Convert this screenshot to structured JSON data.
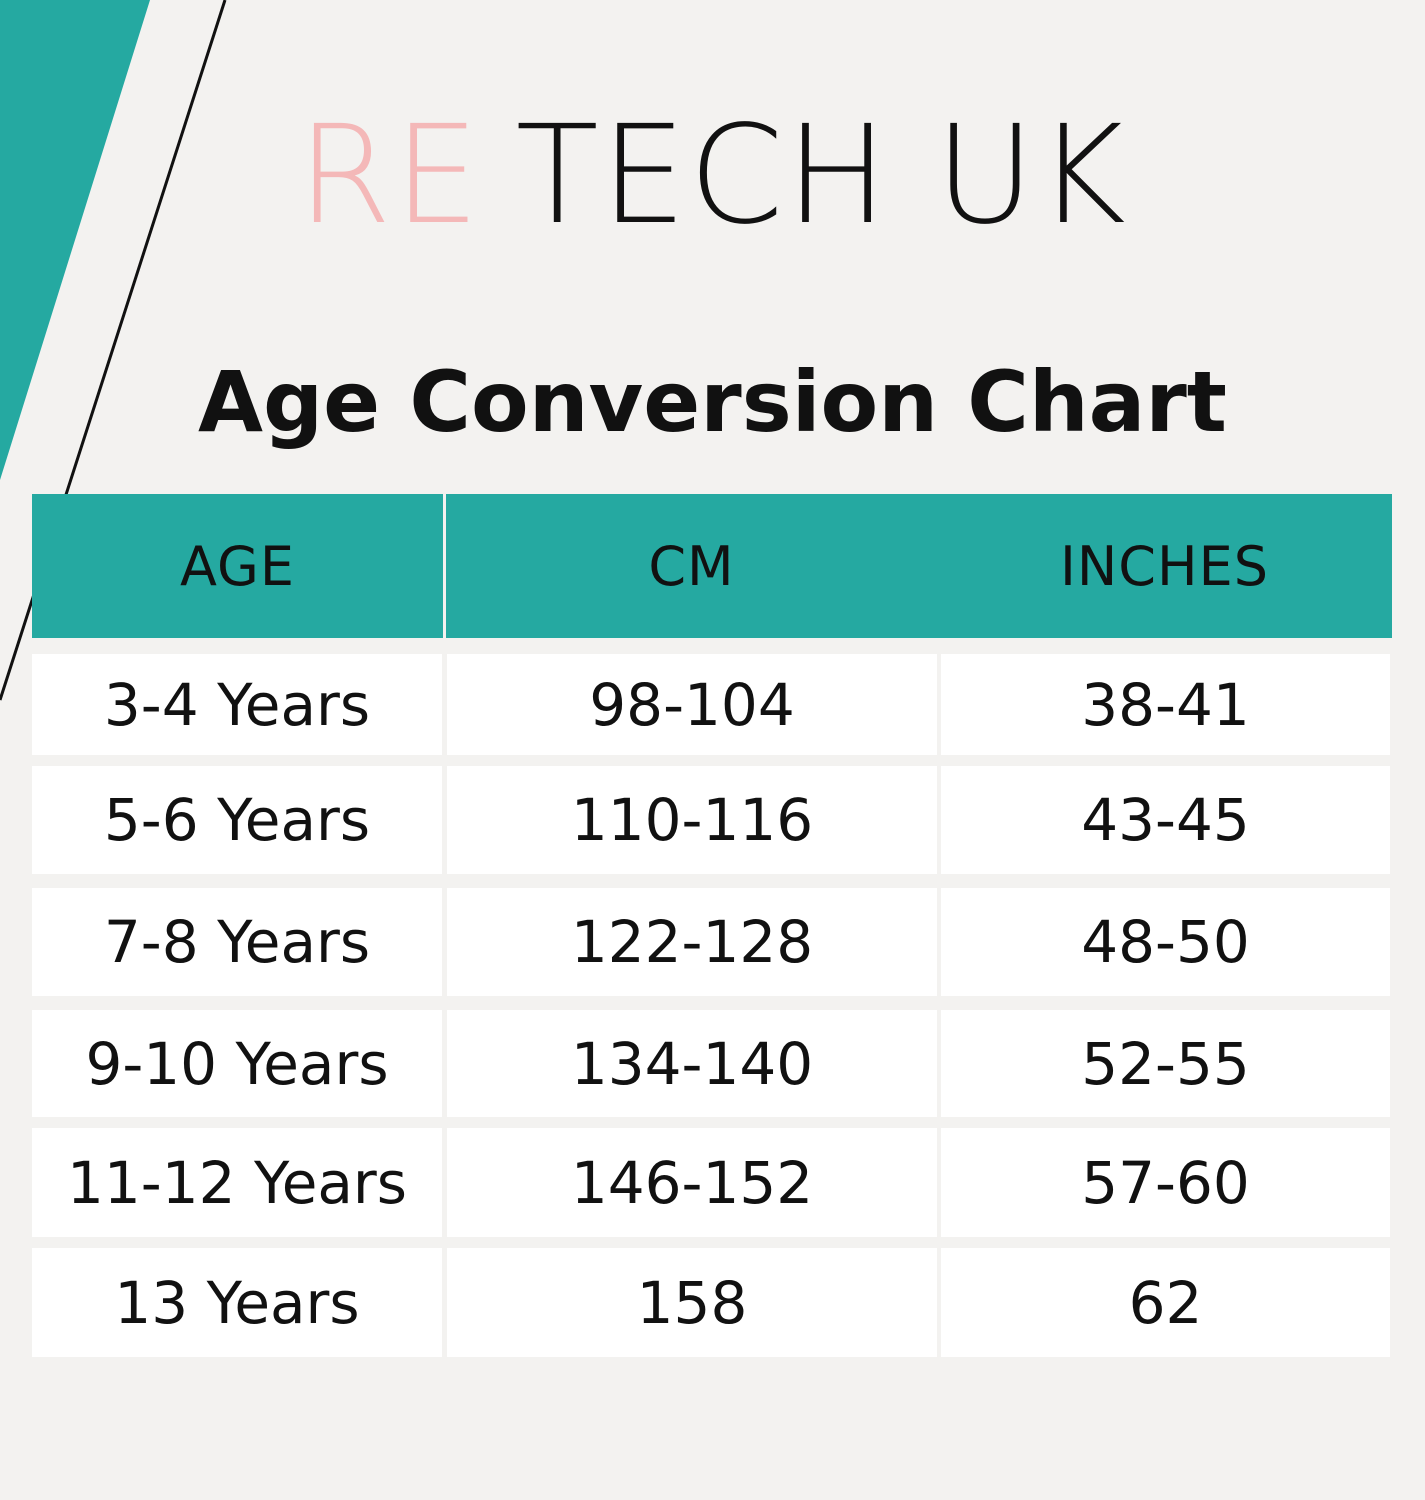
{
  "brand": {
    "part1": "RE",
    "part2": "TECH UK",
    "part1_color": "#f4b8b8",
    "part2_color": "#111111"
  },
  "title": "Age Conversion Chart",
  "colors": {
    "accent": "#25a9a1",
    "background": "#f3f2f0",
    "row_background": "#ffffff"
  },
  "table": {
    "headers": [
      "AGE",
      "CM",
      "INCHES"
    ],
    "rows": [
      [
        "3-4 Years",
        "98-104",
        "38-41"
      ],
      [
        "5-6 Years",
        "110-116",
        "43-45"
      ],
      [
        "7-8 Years",
        "122-128",
        "48-50"
      ],
      [
        "9-10 Years",
        "134-140",
        "52-55"
      ],
      [
        "11-12 Years",
        "146-152",
        "57-60"
      ],
      [
        "13 Years",
        "158",
        "62"
      ]
    ]
  }
}
